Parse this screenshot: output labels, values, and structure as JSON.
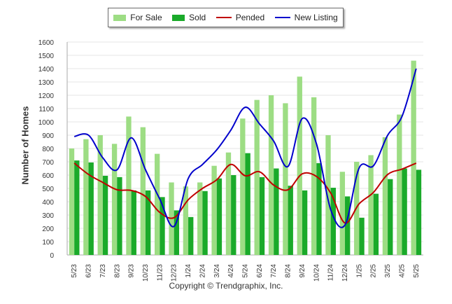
{
  "legend": {
    "for_sale": "For Sale",
    "sold": "Sold",
    "pended": "Pended",
    "new_listing": "New Listing"
  },
  "colors": {
    "for_sale": "#9ddd84",
    "sold": "#1aaa2a",
    "pended": "#c00000",
    "new_listing": "#0000cc",
    "grid": "#e6e6e6"
  },
  "footer": {
    "copyright": "Copyright © Trendgraphix, Inc."
  },
  "chart_data": {
    "type": "bar",
    "title": "",
    "xlabel": "",
    "ylabel": "Number of Homes",
    "ylim": [
      0,
      1600
    ],
    "yticks": [
      0,
      100,
      200,
      300,
      400,
      500,
      600,
      700,
      800,
      900,
      1000,
      1100,
      1200,
      1300,
      1400,
      1500,
      1600
    ],
    "grid": true,
    "legend_position": "top-center",
    "categories": [
      "5/23",
      "6/23",
      "7/23",
      "8/23",
      "9/23",
      "10/23",
      "11/23",
      "12/23",
      "1/24",
      "2/24",
      "3/24",
      "4/24",
      "5/24",
      "6/24",
      "7/24",
      "8/24",
      "9/24",
      "10/24",
      "11/24",
      "12/24",
      "1/25",
      "2/25",
      "3/25",
      "4/25",
      "5/25"
    ],
    "series": [
      {
        "name": "For Sale",
        "type": "bar",
        "values": [
          800,
          870,
          900,
          835,
          1040,
          960,
          760,
          545,
          515,
          545,
          670,
          770,
          1025,
          1165,
          1200,
          1140,
          1340,
          1185,
          900,
          625,
          700,
          750,
          885,
          1055,
          1460
        ]
      },
      {
        "name": "Sold",
        "type": "bar",
        "values": [
          710,
          695,
          595,
          585,
          485,
          485,
          435,
          335,
          285,
          480,
          575,
          600,
          765,
          585,
          650,
          520,
          485,
          690,
          505,
          440,
          280,
          460,
          570,
          650,
          640
        ]
      },
      {
        "name": "Pended",
        "type": "line",
        "values": [
          690,
          605,
          545,
          490,
          485,
          440,
          320,
          280,
          415,
          500,
          565,
          680,
          595,
          625,
          525,
          490,
          610,
          590,
          465,
          240,
          385,
          470,
          605,
          645,
          690
        ]
      },
      {
        "name": "New Listing",
        "type": "line",
        "values": [
          890,
          900,
          730,
          640,
          880,
          640,
          420,
          215,
          575,
          680,
          790,
          940,
          1110,
          985,
          855,
          665,
          1025,
          835,
          340,
          225,
          655,
          670,
          900,
          1040,
          1400
        ]
      }
    ]
  }
}
